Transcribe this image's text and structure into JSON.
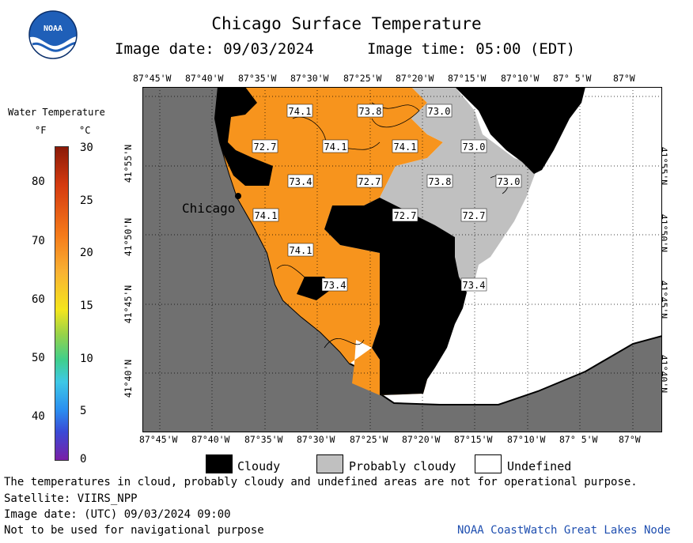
{
  "header": {
    "title": "Chicago Surface Temperature",
    "image_date": "Image date: 09/03/2024",
    "image_time": "Image time: 05:00 (EDT)"
  },
  "logo": {
    "text": "NOAA",
    "color": "#1f5fb8"
  },
  "axes": {
    "longitude_ticks": [
      "87°45'W",
      "87°40'W",
      "87°35'W",
      "87°30'W",
      "87°25'W",
      "87°20'W",
      "87°15'W",
      "87°10'W",
      "87° 5'W",
      "87°W"
    ],
    "latitude_ticks": [
      "41°55'N",
      "41°50'N",
      "41°45'N",
      "41°40'N"
    ]
  },
  "legend": {
    "title": "Water Temperature",
    "unit_f": "°F",
    "unit_c": "°C",
    "f_ticks": [
      "80",
      "70",
      "60",
      "50",
      "40"
    ],
    "c_ticks": [
      "30",
      "25",
      "20",
      "15",
      "10",
      "5",
      "0"
    ]
  },
  "map": {
    "city_label": "Chicago",
    "temperature_labels": [
      "74.1",
      "73.8",
      "73.0",
      "72.7",
      "74.1",
      "74.1",
      "73.0",
      "73.4",
      "72.7",
      "73.8",
      "73.0",
      "74.1",
      "72.7",
      "72.7",
      "74.1",
      "73.4",
      "73.4"
    ],
    "colors": {
      "water": "#f7941d",
      "land": "#707070",
      "cloudy": "#000000",
      "probably_cloudy": "#c0c0c0",
      "undefined": "#ffffff"
    }
  },
  "key": {
    "cloudy": "Cloudy",
    "probably_cloudy": "Probably cloudy",
    "undefined": "Undefined"
  },
  "footer": {
    "disclaimer": "The temperatures in cloud, probably cloudy and undefined areas are not for operational purpose.",
    "satellite": "Satellite: VIIRS_NPP",
    "utc_date": "Image date: (UTC) 09/03/2024  09:00",
    "navigation": "Not to be used for navigational purpose",
    "credit": "NOAA CoastWatch Great Lakes Node"
  }
}
